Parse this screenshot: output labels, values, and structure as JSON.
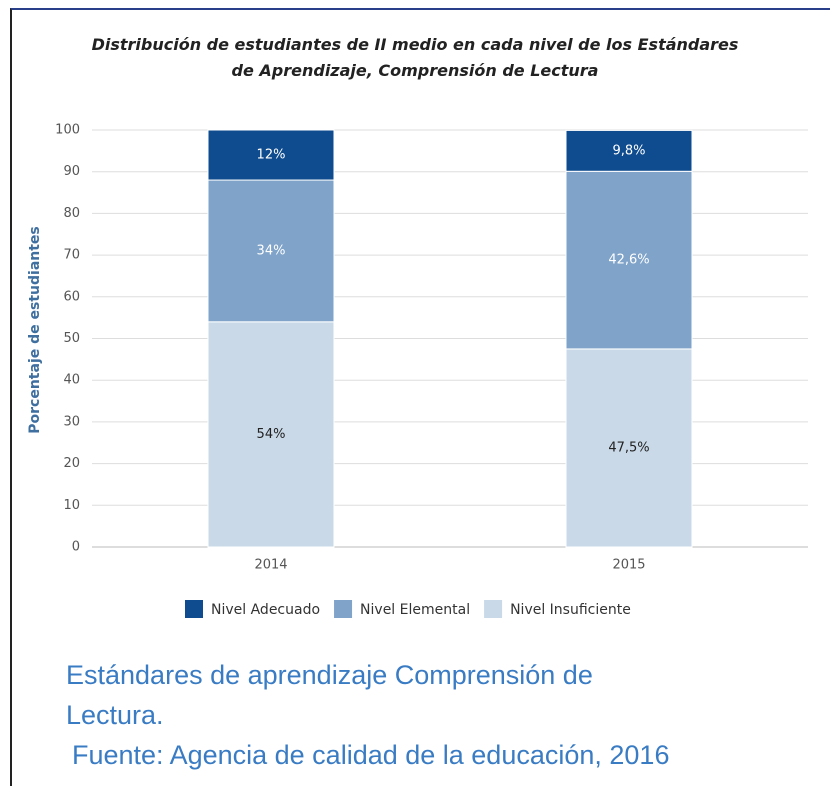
{
  "chart_data": {
    "type": "stacked_bar",
    "title": "Distribución de estudiantes de II medio en cada nivel de los Estándares de Aprendizaje, Comprensión de Lectura",
    "y_label": "Porcentaje de estudiantes",
    "categories": [
      "2014",
      "2015"
    ],
    "series": [
      {
        "name": "Nivel Adecuado",
        "color": "#0f4b8f",
        "values": [
          12,
          9.8
        ],
        "value_labels": [
          "12%",
          "9,8%"
        ]
      },
      {
        "name": "Nivel Elemental",
        "color": "#7fa3c9",
        "values": [
          34,
          42.6
        ],
        "value_labels": [
          "34%",
          "42,6%"
        ]
      },
      {
        "name": "Nivel Insuficiente",
        "color": "#c9d9e8",
        "values": [
          54,
          47.5
        ],
        "value_labels": [
          "54%",
          "47,5%"
        ]
      }
    ],
    "ylim": [
      0,
      100
    ],
    "yticks": [
      0,
      10,
      20,
      30,
      40,
      50,
      60,
      70,
      80,
      90,
      100
    ],
    "grid": true,
    "legend": "bottom"
  },
  "caption": {
    "text": "Estándares de aprendizaje Comprensión de Lectura.",
    "source": "Fuente: Agencia de calidad de la educación, 2016"
  }
}
